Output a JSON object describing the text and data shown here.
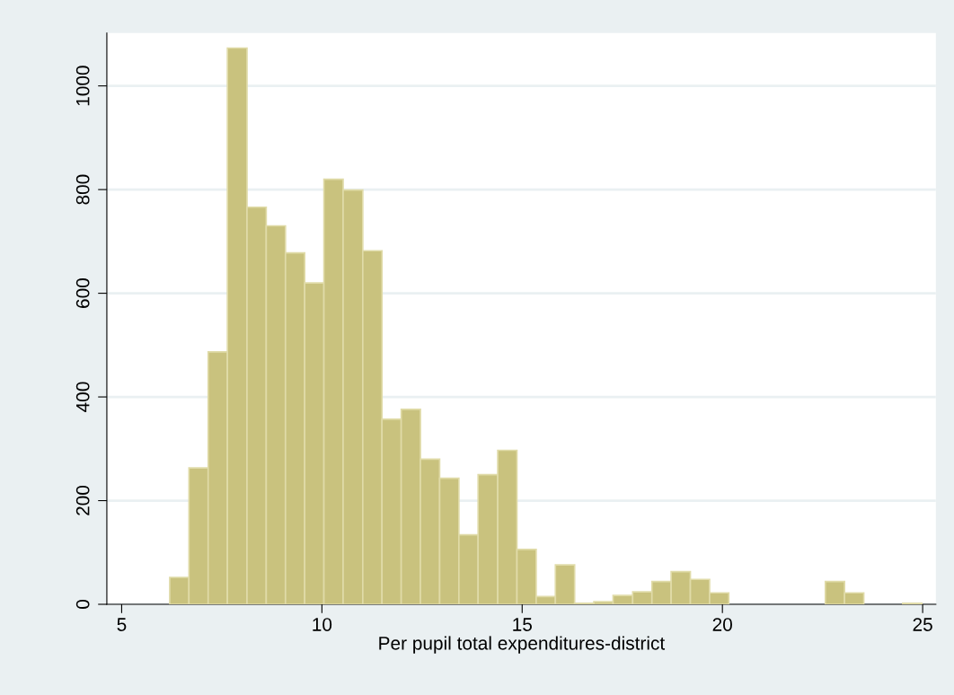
{
  "chart_data": {
    "type": "histogram",
    "xlabel": "Per pupil total expenditures-district",
    "bins": [
      6.2,
      6.68,
      7.16,
      7.64,
      8.13,
      8.61,
      9.09,
      9.57,
      10.05,
      10.53,
      11.02,
      11.5,
      11.98,
      12.46,
      12.94,
      13.42,
      13.9,
      14.39,
      14.87,
      15.35,
      15.83,
      16.31,
      16.79,
      17.27,
      17.76,
      18.24,
      18.72,
      19.2,
      19.68,
      20.16,
      20.65,
      21.13,
      21.61,
      22.09,
      22.57,
      23.05,
      23.53,
      24.02,
      24.5,
      24.98
    ],
    "values": [
      52,
      263,
      487,
      1073,
      766,
      730,
      678,
      620,
      820,
      799,
      682,
      357,
      376,
      280,
      243,
      134,
      250,
      297,
      106,
      15,
      76,
      2,
      5,
      17,
      24,
      44,
      63,
      48,
      22,
      0,
      0,
      0,
      0,
      0,
      44,
      22,
      0,
      0,
      2
    ],
    "color": "#c9c27e",
    "xlim": [
      4.63,
      25.33
    ],
    "xticks": [
      5,
      10,
      15,
      20,
      25
    ],
    "ylim": [
      0,
      1102
    ],
    "yticks": [
      0,
      200,
      400,
      600,
      800,
      1000
    ],
    "grid": "y"
  }
}
